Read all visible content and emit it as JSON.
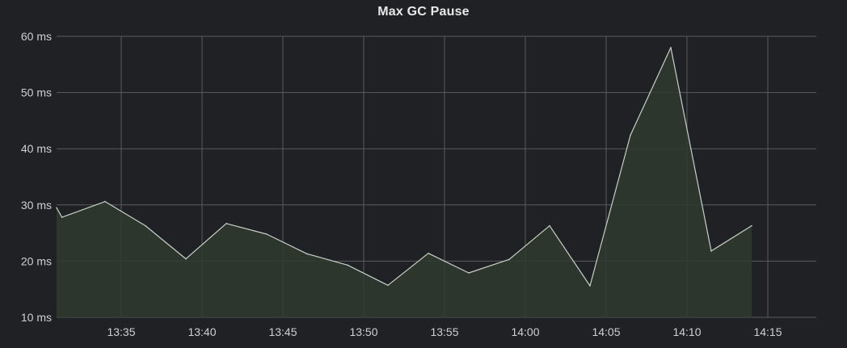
{
  "panel": {
    "title": "Max GC Pause"
  },
  "colors": {
    "background": "#202124",
    "grid": "#5a5b5c",
    "line": "#c8d0c8",
    "fill": "#2f3a2f"
  },
  "chart_data": {
    "type": "area",
    "title": "Max GC Pause",
    "xlabel": "",
    "ylabel": "",
    "y_unit": "ms",
    "ylim": [
      10,
      60
    ],
    "y_ticks": [
      10,
      20,
      30,
      40,
      50,
      60
    ],
    "y_tick_labels": [
      "10 ms",
      "20 ms",
      "30 ms",
      "40 ms",
      "50 ms",
      "60 ms"
    ],
    "xlim": [
      "13:31",
      "14:18"
    ],
    "x_ticks": [
      "13:35",
      "13:40",
      "13:45",
      "13:50",
      "13:55",
      "14:00",
      "14:05",
      "14:10",
      "14:15"
    ],
    "grid": true,
    "legend": "none",
    "series": [
      {
        "x": [
          "13:31:00",
          "13:31:20",
          "13:34:00",
          "13:36:30",
          "13:39:00",
          "13:41:30",
          "13:44:00",
          "13:46:30",
          "13:49:00",
          "13:51:30",
          "13:54:00",
          "13:56:30",
          "13:59:00",
          "14:01:30",
          "14:04:00",
          "14:06:30",
          "14:09:00",
          "14:11:30",
          "14:14:00"
        ],
        "values": [
          29.5,
          27.8,
          30.6,
          26.3,
          20.4,
          26.7,
          24.8,
          21.3,
          19.3,
          15.7,
          21.4,
          17.9,
          20.3,
          26.3,
          15.6,
          42.4,
          58.0,
          21.8,
          26.3
        ]
      }
    ]
  }
}
